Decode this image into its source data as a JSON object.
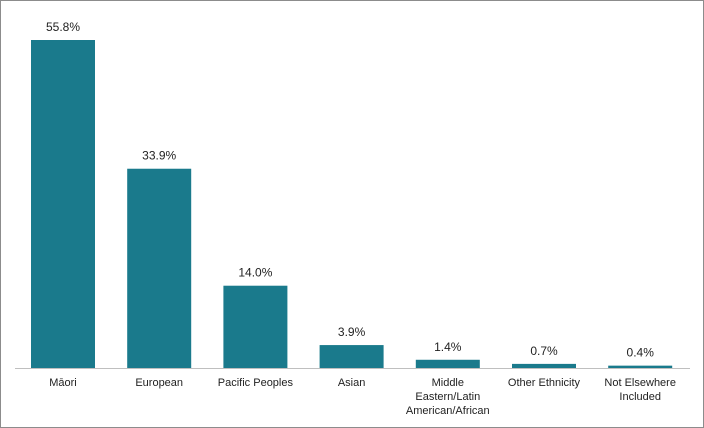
{
  "chart_data": {
    "type": "bar",
    "categories": [
      [
        "Māori"
      ],
      [
        "European"
      ],
      [
        "Pacific Peoples"
      ],
      [
        "Asian"
      ],
      [
        "Middle",
        "Eastern/Latin",
        "American/African"
      ],
      [
        "Other Ethnicity"
      ],
      [
        "Not Elsewhere",
        "Included"
      ]
    ],
    "values": [
      55.8,
      33.9,
      14.0,
      3.9,
      1.4,
      0.7,
      0.4
    ],
    "data_labels": [
      "55.8%",
      "33.9%",
      "14.0%",
      "3.9%",
      "1.4%",
      "0.7%",
      "0.4%"
    ],
    "title": "",
    "xlabel": "",
    "ylabel": "",
    "ylim": [
      0,
      55.8
    ],
    "grid": false,
    "legend": "none",
    "bar_color": "#1a7a8c"
  }
}
